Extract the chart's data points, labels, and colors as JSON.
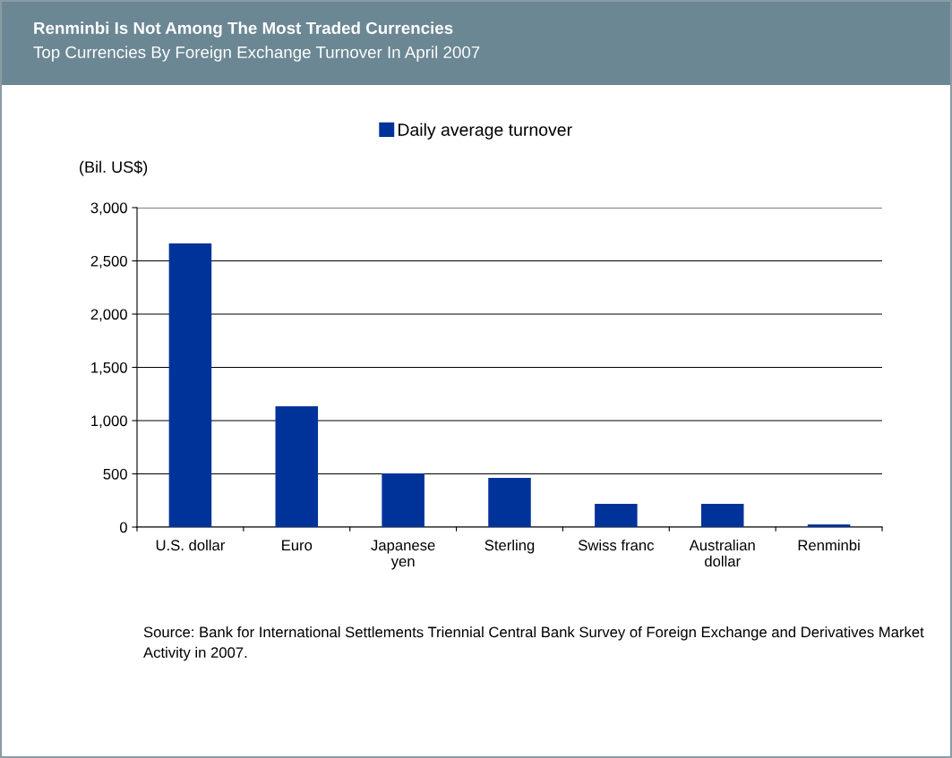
{
  "chart_data": {
    "type": "bar",
    "title": "Renminbi Is Not Among The Most Traded Currencies",
    "subtitle": "Top Currencies By Foreign Exchange Turnover In April 2007",
    "ylabel": "(Bil. US$)",
    "categories": [
      "U.S. dollar",
      "Euro",
      "Japanese\nyen",
      "Sterling",
      "Swiss franc",
      "Australian\ndollar",
      "Renminbi"
    ],
    "series": [
      {
        "name": "Daily average turnover",
        "color": "#003399",
        "values": [
          2664,
          1134,
          505,
          462,
          218,
          218,
          25
        ]
      }
    ],
    "ylim": [
      0,
      3000
    ],
    "yticks": [
      0,
      {
        "value": 500,
        "label": "500"
      },
      {
        "value": 1000,
        "label": "1,000"
      },
      {
        "value": 1500,
        "label": "1,500"
      },
      {
        "value": 2000,
        "label": "2,000"
      },
      {
        "value": 2500,
        "label": "2,500"
      },
      {
        "value": 3000,
        "label": "3,000"
      }
    ],
    "grid": "y",
    "legend": "top",
    "annotations": [
      "Source: Bank for International Settlements Triennial Central Bank Survey of Foreign Exchange and Derivatives Market Activity in 2007."
    ]
  }
}
